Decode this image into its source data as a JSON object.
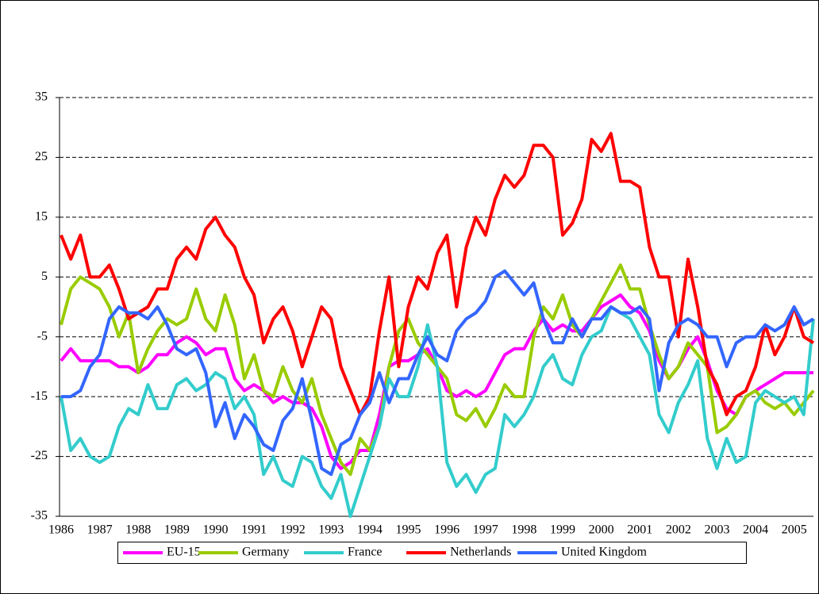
{
  "chart_data": {
    "type": "line",
    "x": [
      1986,
      1986.25,
      1986.5,
      1986.75,
      1987,
      1987.25,
      1987.5,
      1987.75,
      1988,
      1988.25,
      1988.5,
      1988.75,
      1989,
      1989.25,
      1989.5,
      1989.75,
      1990,
      1990.25,
      1990.5,
      1990.75,
      1991,
      1991.25,
      1991.5,
      1991.75,
      1992,
      1992.25,
      1992.5,
      1992.75,
      1993,
      1993.25,
      1993.5,
      1993.75,
      1994,
      1994.25,
      1994.5,
      1994.75,
      1995,
      1995.25,
      1995.5,
      1995.75,
      1996,
      1996.25,
      1996.5,
      1996.75,
      1997,
      1997.25,
      1997.5,
      1997.75,
      1998,
      1998.25,
      1998.5,
      1998.75,
      1999,
      1999.25,
      1999.5,
      1999.75,
      2000,
      2000.25,
      2000.5,
      2000.75,
      2001,
      2001.25,
      2001.5,
      2001.75,
      2002,
      2002.25,
      2002.5,
      2002.75,
      2003,
      2003.25,
      2003.5,
      2003.75,
      2004,
      2004.25,
      2004.5,
      2004.75,
      2005,
      2005.25,
      2005.5
    ],
    "series": [
      {
        "name": "EU-15",
        "color": "#ff00ff",
        "values": [
          -9,
          -7,
          -9,
          -9,
          -9,
          -9,
          -10,
          -10,
          -11,
          -10,
          -8,
          -8,
          -6,
          -5,
          -6,
          -8,
          -7,
          -7,
          -12,
          -14,
          -13,
          -14,
          -16,
          -15,
          -16,
          -16,
          -17,
          -20,
          -25,
          -27,
          -26,
          -24,
          -24,
          -18,
          -10,
          -9,
          -9,
          -8,
          -7,
          -10,
          -14,
          -15,
          -14,
          -15,
          -14,
          -11,
          -8,
          -7,
          -7,
          -4,
          -2,
          -4,
          -3,
          -4,
          -4,
          -2,
          0,
          1,
          2,
          0,
          -1,
          -4,
          -9,
          -12,
          -10,
          -7,
          -5,
          -9,
          -14,
          -17,
          -18,
          -15,
          -14,
          -13,
          -12,
          -11,
          -11,
          -11,
          -11
        ]
      },
      {
        "name": "Germany",
        "color": "#99cc00",
        "values": [
          -3,
          3,
          5,
          4,
          3,
          0,
          -5,
          -1,
          -11,
          -7,
          -4,
          -2,
          -3,
          -2,
          3,
          -2,
          -4,
          2,
          -3,
          -12,
          -8,
          -14,
          -15,
          -10,
          -14,
          -16,
          -12,
          -18,
          -22,
          -26,
          -28,
          -22,
          -24,
          -20,
          -10,
          -4,
          -2,
          -6,
          -8,
          -10,
          -12,
          -18,
          -19,
          -17,
          -20,
          -17,
          -13,
          -15,
          -15,
          -5,
          0,
          -2,
          2,
          -3,
          -5,
          -2,
          1,
          4,
          7,
          3,
          3,
          -3,
          -8,
          -12,
          -10,
          -6,
          -8,
          -10,
          -21,
          -20,
          -18,
          -15,
          -14,
          -16,
          -17,
          -16,
          -18,
          -16,
          -14
        ]
      },
      {
        "name": "France",
        "color": "#33cccc",
        "values": [
          -15,
          -24,
          -22,
          -25,
          -26,
          -25,
          -20,
          -17,
          -18,
          -13,
          -17,
          -17,
          -13,
          -12,
          -14,
          -13,
          -11,
          -12,
          -17,
          -15,
          -18,
          -28,
          -25,
          -29,
          -30,
          -25,
          -26,
          -30,
          -32,
          -28,
          -35,
          -30,
          -25,
          -20,
          -12,
          -15,
          -15,
          -10,
          -3,
          -10,
          -26,
          -30,
          -28,
          -31,
          -28,
          -27,
          -18,
          -20,
          -18,
          -15,
          -10,
          -8,
          -12,
          -13,
          -8,
          -5,
          -4,
          0,
          -1,
          -2,
          -5,
          -8,
          -18,
          -21,
          -16,
          -13,
          -9,
          -22,
          -27,
          -22,
          -26,
          -25,
          -16,
          -14,
          -15,
          -16,
          -15,
          -18,
          -2
        ]
      },
      {
        "name": "Netherlands",
        "color": "#ff0000",
        "values": [
          12,
          8,
          12,
          5,
          5,
          7,
          3,
          -2,
          -1,
          0,
          3,
          3,
          8,
          10,
          8,
          13,
          15,
          12,
          10,
          5,
          2,
          -6,
          -2,
          0,
          -4,
          -10,
          -5,
          0,
          -2,
          -10,
          -14,
          -18,
          -15,
          -4,
          5,
          -10,
          0,
          5,
          3,
          9,
          12,
          0,
          10,
          15,
          12,
          18,
          22,
          20,
          22,
          27,
          27,
          25,
          12,
          14,
          18,
          28,
          26,
          29,
          21,
          21,
          20,
          10,
          5,
          5,
          -5,
          8,
          0,
          -10,
          -13,
          -18,
          -15,
          -14,
          -10,
          -3,
          -8,
          -5,
          0,
          -5,
          -6
        ]
      },
      {
        "name": "United Kingdom",
        "color": "#3366ff",
        "values": [
          -15,
          -15,
          -14,
          -10,
          -8,
          -2,
          0,
          -1,
          -1,
          -2,
          0,
          -3,
          -7,
          -8,
          -7,
          -11,
          -20,
          -16,
          -22,
          -18,
          -20,
          -23,
          -24,
          -19,
          -17,
          -12,
          -19,
          -27,
          -28,
          -23,
          -22,
          -18,
          -16,
          -11,
          -16,
          -12,
          -12,
          -8,
          -5,
          -8,
          -9,
          -4,
          -2,
          -1,
          1,
          5,
          6,
          4,
          2,
          4,
          -2,
          -6,
          -6,
          -2,
          -5,
          -2,
          -2,
          0,
          -1,
          -1,
          0,
          -2,
          -14,
          -6,
          -3,
          -2,
          -3,
          -5,
          -5,
          -10,
          -6,
          -5,
          -5,
          -3,
          -4,
          -3,
          0,
          -3,
          -2
        ]
      }
    ],
    "xlim": [
      1986,
      2005.5
    ],
    "xticks": [
      1986,
      1987,
      1988,
      1989,
      1990,
      1991,
      1992,
      1993,
      1994,
      1995,
      1996,
      1997,
      1998,
      1999,
      2000,
      2001,
      2002,
      2003,
      2004,
      2005
    ],
    "ylim": [
      -35,
      35
    ],
    "yticks": [
      -35,
      -25,
      -15,
      -5,
      5,
      15,
      25,
      35
    ],
    "grid": true,
    "legend": "bottom"
  }
}
